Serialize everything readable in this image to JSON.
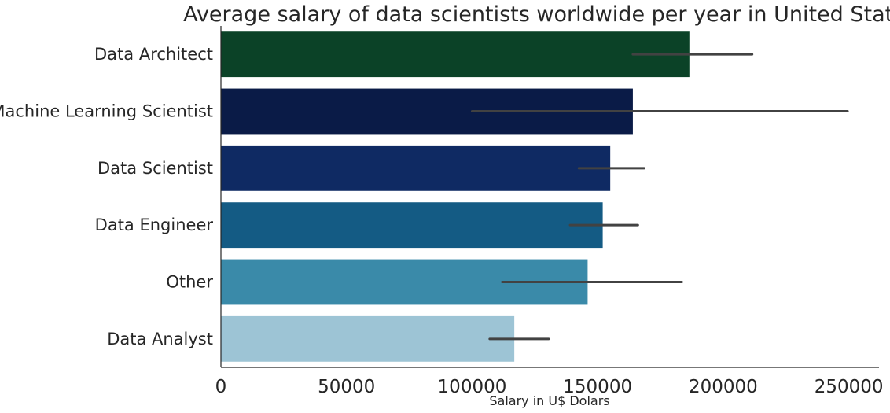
{
  "chart_data": {
    "type": "bar",
    "orientation": "horizontal",
    "title": "Average salary of data scientists worldwide per year in United States",
    "xlabel": "Salary in U$ Dolars",
    "ylabel": "",
    "xlim": [
      0,
      262000
    ],
    "xticks": [
      0,
      50000,
      100000,
      150000,
      200000,
      250000
    ],
    "xtick_labels": [
      "0",
      "50000",
      "100000",
      "150000",
      "200000",
      "250000"
    ],
    "categories": [
      "Data Architect",
      "Machine Learning Scientist",
      "Data Scientist",
      "Data Engineer",
      "Other",
      "Data Analyst"
    ],
    "values": [
      186500,
      164000,
      155000,
      152000,
      146000,
      116800
    ],
    "error_low": [
      164000,
      100000,
      142500,
      139000,
      112000,
      107000
    ],
    "error_high": [
      211500,
      249500,
      168500,
      166000,
      183500,
      130500
    ],
    "colors": [
      "#0b4227",
      "#0a1b47",
      "#0f2a63",
      "#145b84",
      "#3a8aa9",
      "#9dc4d5"
    ],
    "grid": false,
    "legend": "none"
  }
}
